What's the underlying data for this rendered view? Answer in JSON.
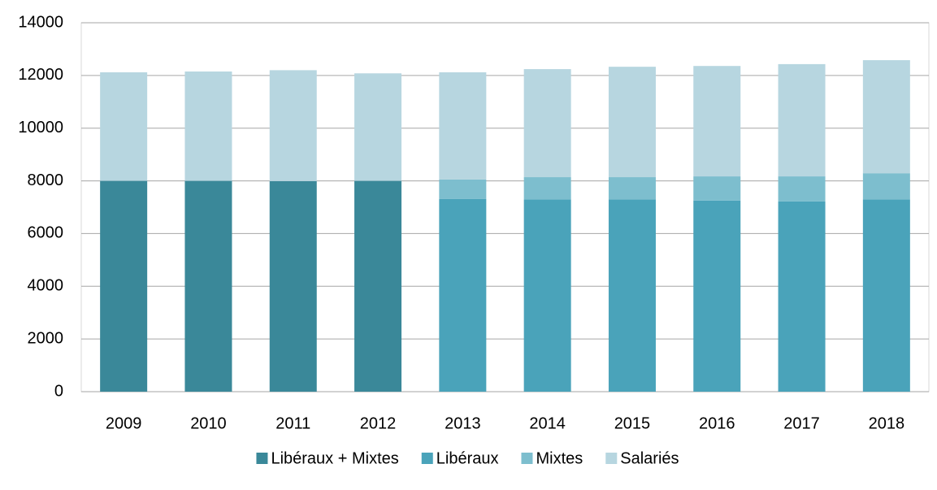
{
  "chart_data": {
    "type": "stacked_bar",
    "categories": [
      "2009",
      "2010",
      "2011",
      "2012",
      "2013",
      "2014",
      "2015",
      "2016",
      "2017",
      "2018"
    ],
    "series": [
      {
        "name": "Libéraux + Mixtes",
        "color": "#3a8899",
        "values": [
          8000,
          8000,
          7990,
          8000,
          null,
          null,
          null,
          null,
          null,
          null
        ]
      },
      {
        "name": "Libéraux",
        "color": "#4aa3ba",
        "values": [
          null,
          null,
          null,
          null,
          7310,
          7300,
          7300,
          7250,
          7220,
          7300
        ]
      },
      {
        "name": "Mixtes",
        "color": "#7dbece",
        "values": [
          null,
          null,
          null,
          null,
          740,
          840,
          840,
          920,
          950,
          990
        ]
      },
      {
        "name": "Salariés",
        "color": "#b7d6e0",
        "values": [
          4120,
          4150,
          4210,
          4080,
          4070,
          4100,
          4190,
          4190,
          4260,
          4290
        ]
      }
    ],
    "ylim": [
      0,
      14000
    ],
    "yticks": [
      0,
      2000,
      4000,
      6000,
      8000,
      10000,
      12000,
      14000
    ],
    "grid": true,
    "legend": "bottom"
  }
}
